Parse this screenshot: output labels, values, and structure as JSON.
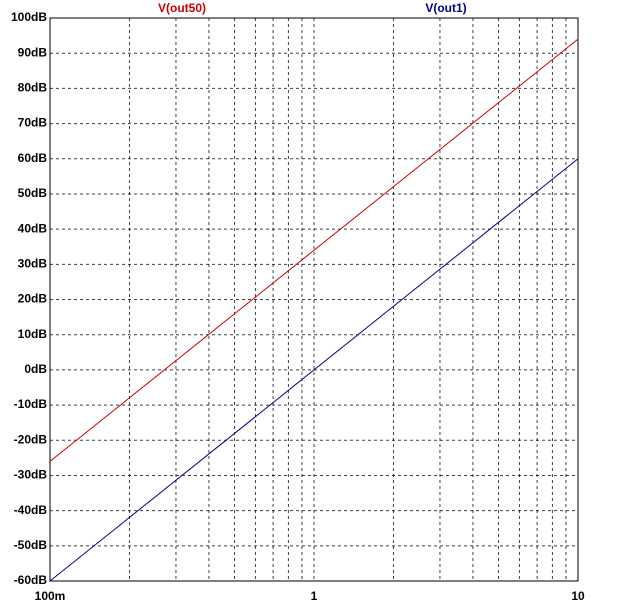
{
  "chart_data": {
    "type": "line",
    "x": [
      0.1,
      10
    ],
    "series": [
      {
        "name": "V(out50)",
        "color": "#cc0000",
        "values": [
          -26,
          94
        ]
      },
      {
        "name": "V(out1)",
        "color": "#00008b",
        "values": [
          -60,
          60
        ]
      }
    ],
    "xlim": [
      0.1,
      10
    ],
    "xlog": true,
    "xticks": [
      {
        "value": 0.1,
        "label": "100m"
      },
      1,
      10
    ],
    "xminor": [
      0.2,
      0.3,
      0.4,
      0.5,
      0.6,
      0.7,
      0.8,
      0.9,
      2,
      3,
      4,
      5,
      6,
      7,
      8,
      9
    ],
    "ylim": [
      -60,
      100
    ],
    "yticks": [
      {
        "value": -60,
        "label": "-60dB"
      },
      {
        "value": -50,
        "label": "-50dB"
      },
      {
        "value": -40,
        "label": "-40dB"
      },
      {
        "value": -30,
        "label": "-30dB"
      },
      {
        "value": -20,
        "label": "-20dB"
      },
      {
        "value": -10,
        "label": "-10dB"
      },
      {
        "value": 0,
        "label": "0dB"
      },
      {
        "value": 10,
        "label": "10dB"
      },
      {
        "value": 20,
        "label": "20dB"
      },
      {
        "value": 30,
        "label": "30dB"
      },
      {
        "value": 40,
        "label": "40dB"
      },
      {
        "value": 50,
        "label": "50dB"
      },
      {
        "value": 60,
        "label": "60dB"
      },
      {
        "value": 70,
        "label": "70dB"
      },
      {
        "value": 80,
        "label": "80dB"
      },
      {
        "value": 90,
        "label": "90dB"
      },
      {
        "value": 100,
        "label": "100dB"
      }
    ],
    "grid": true
  }
}
